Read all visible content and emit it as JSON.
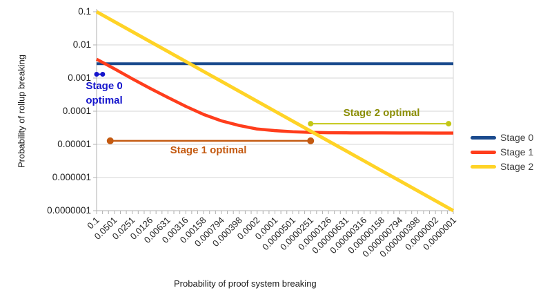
{
  "chart_data": {
    "type": "line",
    "title": "",
    "xlabel": "Probability of proof system breaking",
    "ylabel": "Probability of rollup breaking",
    "x_scale": "log",
    "y_scale": "log",
    "x_range": [
      0.1,
      1e-07
    ],
    "y_range": [
      0.1,
      1e-07
    ],
    "grid": true,
    "legend_position": "right",
    "x_ticks": [
      "0.1",
      "0.0501",
      "0.0251",
      "0.0126",
      "0.00631",
      "0.00316",
      "0.00158",
      "0.000794",
      "0.000398",
      "0.0002",
      "0.0001",
      "0.0000501",
      "0.0000251",
      "0.0000126",
      "0.00000631",
      "0.00000316",
      "0.00000158",
      "0.000000794",
      "0.000000398",
      "0.0000002",
      "0.0000001"
    ],
    "y_ticks": [
      "0.1",
      "0.01",
      "0.001",
      "0.0001",
      "0.00001",
      "0.000001",
      "0.0000001"
    ],
    "series": [
      {
        "name": "Stage 0",
        "color": "#1a4a8d",
        "values": [
          0.0027,
          0.0027,
          0.0027,
          0.0027,
          0.0027,
          0.0027,
          0.0027,
          0.0027,
          0.0027,
          0.0027,
          0.0027,
          0.0027,
          0.0027,
          0.0027,
          0.0027,
          0.0027,
          0.0027,
          0.0027,
          0.0027,
          0.0027,
          0.0027
        ]
      },
      {
        "name": "Stage 1",
        "color": "#ff3d1c",
        "values": [
          0.0037,
          0.0019,
          0.00095,
          0.00049,
          0.00026,
          0.00014,
          8e-05,
          5.1e-05,
          3.7e-05,
          2.9e-05,
          2.6e-05,
          2.4e-05,
          2.3e-05,
          2.25e-05,
          2.23e-05,
          2.22e-05,
          2.22e-05,
          2.21e-05,
          2.21e-05,
          2.2e-05,
          2.2e-05
        ]
      },
      {
        "name": "Stage 2",
        "color": "#ffd326",
        "values": [
          0.1,
          0.0501,
          0.0251,
          0.0126,
          0.00631,
          0.00316,
          0.00158,
          0.000794,
          0.000398,
          0.0002,
          0.0001,
          5.01e-05,
          2.51e-05,
          1.26e-05,
          6.31e-06,
          3.16e-06,
          1.58e-06,
          7.94e-07,
          3.98e-07,
          2e-07,
          1e-07
        ]
      }
    ],
    "annotations": [
      {
        "label": "Stage 0 optimal",
        "label_lines": [
          "Stage 0",
          "optimal"
        ],
        "text_color": "#1515cc",
        "line_color": "#1515cc",
        "x_from": 0.1,
        "x_to": 0.079,
        "y": 0.0013
      },
      {
        "label": "Stage 1 optimal",
        "text_color": "#c45a11",
        "line_color": "#c45a11",
        "x_from": 0.059,
        "x_to": 2.51e-05,
        "y": 1.28e-05
      },
      {
        "label": "Stage 2 optimal",
        "text_color": "#8a8d05",
        "line_color": "#c3c714",
        "x_from": 2.51e-05,
        "x_to": 1.2e-07,
        "y": 4.2e-05
      }
    ]
  },
  "colors": {
    "background": "#ffffff",
    "grid": "#d4d4d4",
    "axis": "#b0b0b0",
    "tick_text": "#222222",
    "axis_title_text": "#1a1a1a",
    "legend_text": "#3c3c3c"
  }
}
